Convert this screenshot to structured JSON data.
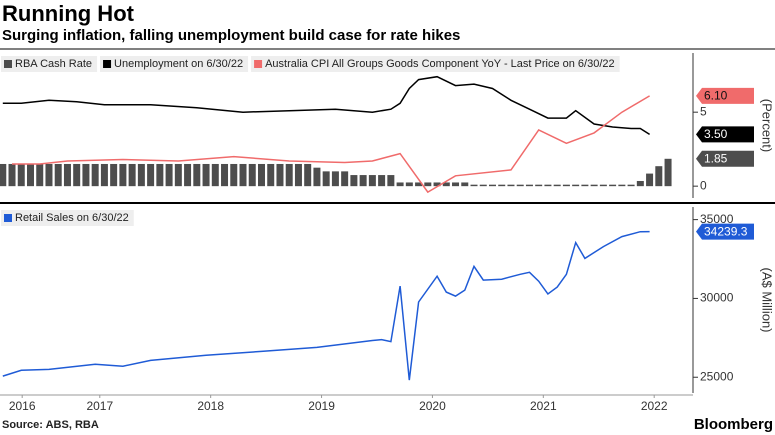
{
  "chart_data": [
    {
      "type": "combo",
      "ylabel": "(Percent)",
      "xlim": [
        2016.6,
        2022.85
      ],
      "ylim": [
        -0.8,
        9
      ],
      "yticks": [
        0,
        5
      ],
      "series": [
        {
          "name": "RBA Cash Rate",
          "kind": "bar",
          "color": "#4d4d4d",
          "last_label": "1.85",
          "x": [
            "2016-08",
            "2016-09",
            "2016-10",
            "2016-11",
            "2016-12",
            "2017-01",
            "2017-02",
            "2017-03",
            "2017-04",
            "2017-05",
            "2017-06",
            "2017-07",
            "2017-08",
            "2017-09",
            "2017-10",
            "2017-11",
            "2017-12",
            "2018-01",
            "2018-02",
            "2018-03",
            "2018-04",
            "2018-05",
            "2018-06",
            "2018-07",
            "2018-08",
            "2018-09",
            "2018-10",
            "2018-11",
            "2018-12",
            "2019-01",
            "2019-02",
            "2019-03",
            "2019-04",
            "2019-05",
            "2019-06",
            "2019-07",
            "2019-08",
            "2019-09",
            "2019-10",
            "2019-11",
            "2019-12",
            "2020-01",
            "2020-02",
            "2020-03",
            "2020-04",
            "2020-05",
            "2020-06",
            "2020-07",
            "2020-08",
            "2020-09",
            "2020-10",
            "2020-11",
            "2020-12",
            "2021-01",
            "2021-02",
            "2021-03",
            "2021-04",
            "2021-05",
            "2021-06",
            "2021-07",
            "2021-08",
            "2021-09",
            "2021-10",
            "2021-11",
            "2021-12",
            "2022-01",
            "2022-02",
            "2022-03",
            "2022-04",
            "2022-05",
            "2022-06",
            "2022-07",
            "2022-08"
          ],
          "values": [
            1.5,
            1.5,
            1.5,
            1.5,
            1.5,
            1.5,
            1.5,
            1.5,
            1.5,
            1.5,
            1.5,
            1.5,
            1.5,
            1.5,
            1.5,
            1.5,
            1.5,
            1.5,
            1.5,
            1.5,
            1.5,
            1.5,
            1.5,
            1.5,
            1.5,
            1.5,
            1.5,
            1.5,
            1.5,
            1.5,
            1.5,
            1.5,
            1.5,
            1.5,
            1.25,
            1.0,
            1.0,
            1.0,
            0.75,
            0.75,
            0.75,
            0.75,
            0.75,
            0.25,
            0.25,
            0.25,
            0.25,
            0.25,
            0.25,
            0.25,
            0.25,
            0.1,
            0.1,
            0.1,
            0.1,
            0.1,
            0.1,
            0.1,
            0.1,
            0.1,
            0.1,
            0.1,
            0.1,
            0.1,
            0.1,
            0.1,
            0.1,
            0.1,
            0.1,
            0.35,
            0.85,
            1.35,
            1.85
          ]
        },
        {
          "name": "Unemployment on 6/30/22",
          "kind": "line",
          "color": "#000000",
          "last_label": "3.50",
          "x": [
            "2016-08",
            "2016-10",
            "2017-01",
            "2017-04",
            "2017-07",
            "2017-12",
            "2018-05",
            "2018-10",
            "2019-03",
            "2019-08",
            "2019-12",
            "2020-02",
            "2020-03",
            "2020-04",
            "2020-05",
            "2020-07",
            "2020-09",
            "2020-11",
            "2021-01",
            "2021-03",
            "2021-05",
            "2021-07",
            "2021-09",
            "2021-10",
            "2021-12",
            "2022-02",
            "2022-04",
            "2022-05",
            "2022-06"
          ],
          "values": [
            5.6,
            5.6,
            5.8,
            5.7,
            5.5,
            5.5,
            5.3,
            5.0,
            5.1,
            5.2,
            5.0,
            5.2,
            5.6,
            6.6,
            7.2,
            7.4,
            6.8,
            6.9,
            6.6,
            5.8,
            5.2,
            4.6,
            4.6,
            5.1,
            4.2,
            4.0,
            3.9,
            3.9,
            3.5
          ]
        },
        {
          "name": "Australia CPI All Groups Goods Component YoY - Last Price on 6/30/22",
          "kind": "line",
          "color": "#f06b6b",
          "last_label": "6.10",
          "x": [
            "2016-09",
            "2016-12",
            "2017-03",
            "2017-09",
            "2018-03",
            "2018-09",
            "2019-03",
            "2019-09",
            "2019-12",
            "2020-03",
            "2020-06",
            "2020-09",
            "2021-03",
            "2021-06",
            "2021-09",
            "2021-12",
            "2022-03",
            "2022-06"
          ],
          "values": [
            1.5,
            1.5,
            1.7,
            1.8,
            1.7,
            2.0,
            1.7,
            1.6,
            1.7,
            2.2,
            -0.4,
            0.7,
            1.1,
            3.8,
            2.9,
            3.6,
            5.0,
            6.1
          ]
        }
      ]
    },
    {
      "type": "line",
      "ylabel": "(A$ Million)",
      "xlim": [
        2016.6,
        2022.85
      ],
      "ylim": [
        24000,
        35800
      ],
      "yticks": [
        25000,
        30000,
        35000
      ],
      "xticks": [
        {
          "value": 2016.8,
          "label": "2016"
        },
        {
          "value": 2017.5,
          "label": "2017"
        },
        {
          "value": 2018.5,
          "label": "2018"
        },
        {
          "value": 2019.5,
          "label": "2019"
        },
        {
          "value": 2020.5,
          "label": "2020"
        },
        {
          "value": 2021.5,
          "label": "2021"
        },
        {
          "value": 2022.5,
          "label": "2022"
        }
      ],
      "series": [
        {
          "name": "Retail Sales on 6/30/22",
          "kind": "line",
          "color": "#1f5bd6",
          "last_label": "34239.3",
          "x": [
            "2016-08",
            "2016-10",
            "2017-01",
            "2017-06",
            "2017-09",
            "2017-12",
            "2018-06",
            "2018-12",
            "2019-06",
            "2019-12",
            "2020-01",
            "2020-02",
            "2020-03",
            "2020-04",
            "2020-05",
            "2020-07",
            "2020-08",
            "2020-09",
            "2020-10",
            "2020-11",
            "2020-12",
            "2021-02",
            "2021-04",
            "2021-05",
            "2021-06",
            "2021-07",
            "2021-08",
            "2021-09",
            "2021-10",
            "2021-11",
            "2022-01",
            "2022-03",
            "2022-05",
            "2022-06"
          ],
          "values": [
            25070,
            25440,
            25500,
            25820,
            25700,
            26070,
            26390,
            26640,
            26890,
            27330,
            27390,
            27260,
            30780,
            24820,
            29770,
            31410,
            30400,
            30150,
            30530,
            32030,
            31160,
            31220,
            31530,
            31660,
            31090,
            30280,
            30720,
            31530,
            33540,
            32540,
            33290,
            33920,
            34230,
            34239.3
          ]
        }
      ]
    }
  ],
  "title": "Running Hot",
  "subtitle": "Surging inflation, falling unemployment build case for rate hikes",
  "source": "Source: ABS, RBA",
  "brand": "Bloomberg"
}
